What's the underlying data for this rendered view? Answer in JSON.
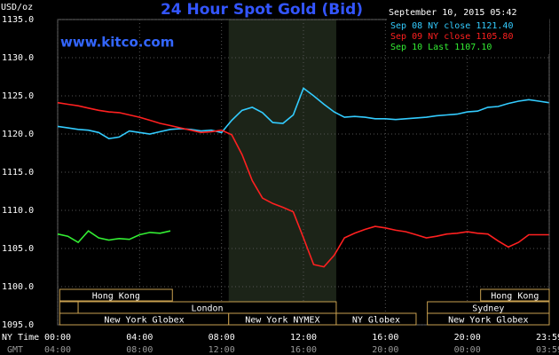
{
  "chart_data": {
    "type": "line",
    "title": "24 Hour Spot Gold (Bid)",
    "y_label": "USD/oz",
    "timestamp": "September 10, 2015 05:42",
    "watermark": "www.kitco.com",
    "x_label": "NY Time",
    "x2_label": "GMT",
    "x": [
      0,
      0.5,
      1,
      1.5,
      2,
      2.5,
      3,
      3.5,
      4,
      4.5,
      5,
      5.5,
      6,
      6.5,
      7,
      7.5,
      8,
      8.5,
      9,
      9.5,
      10,
      10.5,
      11,
      11.5,
      12,
      12.5,
      13,
      13.5,
      14,
      14.5,
      15,
      15.5,
      16,
      16.5,
      17,
      17.5,
      18,
      18.5,
      19,
      19.5,
      20,
      20.5,
      21,
      21.5,
      22,
      22.5,
      23,
      23.5,
      23.98
    ],
    "series": [
      {
        "name": "Sep 08 NY close 1121.40",
        "color": "#33ccff",
        "values": [
          1121.0,
          1120.8,
          1120.6,
          1120.5,
          1120.2,
          1119.4,
          1119.6,
          1120.4,
          1120.2,
          1120.0,
          1120.3,
          1120.6,
          1120.7,
          1120.6,
          1120.4,
          1120.5,
          1120.2,
          1121.8,
          1123.1,
          1123.5,
          1122.8,
          1121.5,
          1121.4,
          1122.5,
          1126.0,
          1125.0,
          1123.9,
          1122.9,
          1122.2,
          1122.3,
          1122.2,
          1122.0,
          1122.0,
          1121.9,
          1122.0,
          1122.1,
          1122.2,
          1122.4,
          1122.5,
          1122.6,
          1122.9,
          1123.0,
          1123.5,
          1123.6,
          1124.0,
          1124.3,
          1124.5,
          1124.3,
          1124.1
        ]
      },
      {
        "name": "Sep 09 NY close 1105.80",
        "color": "#ff2020",
        "values": [
          1124.1,
          1123.9,
          1123.7,
          1123.4,
          1123.1,
          1122.9,
          1122.8,
          1122.5,
          1122.2,
          1121.8,
          1121.4,
          1121.1,
          1120.8,
          1120.5,
          1120.2,
          1120.3,
          1120.5,
          1119.9,
          1117.3,
          1113.9,
          1111.6,
          1110.9,
          1110.4,
          1109.8,
          1106.4,
          1102.9,
          1102.6,
          1104.1,
          1106.4,
          1107.0,
          1107.5,
          1107.9,
          1107.7,
          1107.4,
          1107.2,
          1106.8,
          1106.4,
          1106.6,
          1106.9,
          1107.0,
          1107.2,
          1107.0,
          1106.9,
          1106.0,
          1105.2,
          1105.8,
          1106.8,
          1106.8,
          1106.8
        ]
      },
      {
        "name": "Sep 10 Last 1107.10",
        "color": "#33ee33",
        "values": [
          1106.9,
          1106.6,
          1105.8,
          1107.3,
          1106.4,
          1106.1,
          1106.3,
          1106.2,
          1106.8,
          1107.1,
          1107.0,
          1107.3,
          null,
          null,
          null,
          null,
          null,
          null,
          null,
          null,
          null,
          null,
          null,
          null,
          null,
          null,
          null,
          null,
          null,
          null,
          null,
          null,
          null,
          null,
          null,
          null,
          null,
          null,
          null,
          null,
          null,
          null,
          null,
          null,
          null,
          null,
          null,
          null,
          null
        ]
      }
    ],
    "xlim": [
      0,
      24
    ],
    "xticks": [
      {
        "value": 0,
        "label": "00:00"
      },
      {
        "value": 4,
        "label": "04:00"
      },
      {
        "value": 8,
        "label": "08:00"
      },
      {
        "value": 12,
        "label": "12:00"
      },
      {
        "value": 16,
        "label": "16:00"
      },
      {
        "value": 20,
        "label": "20:00"
      },
      {
        "value": 24,
        "label": "23:59"
      }
    ],
    "x2ticks": [
      {
        "value": 0,
        "label": "04:00"
      },
      {
        "value": 4,
        "label": "08:00"
      },
      {
        "value": 8,
        "label": "12:00"
      },
      {
        "value": 12,
        "label": "16:00"
      },
      {
        "value": 16,
        "label": "20:00"
      },
      {
        "value": 20,
        "label": "00:00"
      },
      {
        "value": 24,
        "label": "03:59"
      }
    ],
    "ylim": [
      1095,
      1135
    ],
    "yticks": [
      {
        "value": 1095,
        "label": "1095.0"
      },
      {
        "value": 1100,
        "label": "1100.0"
      },
      {
        "value": 1105,
        "label": "1105.0"
      },
      {
        "value": 1110,
        "label": "1110.0"
      },
      {
        "value": 1115,
        "label": "1115.0"
      },
      {
        "value": 1120,
        "label": "1120.0"
      },
      {
        "value": 1125,
        "label": "1125.0"
      },
      {
        "value": 1130,
        "label": "1130.0"
      },
      {
        "value": 1135,
        "label": "1135.0"
      }
    ],
    "grid": true,
    "shade_x": [
      8.35,
      13.6
    ],
    "sessions": [
      {
        "label": "Hong Kong",
        "start": 0.1,
        "end": 5.6,
        "row": 0
      },
      {
        "label": "Hong Kong",
        "start": 20.65,
        "end": 24,
        "row": 0
      },
      {
        "start": 0.1,
        "end": 1,
        "row": 1
      },
      {
        "label": "London",
        "start": 1,
        "end": 13.6,
        "row": 1
      },
      {
        "label": "Sydney",
        "start": 18.05,
        "end": 24,
        "row": 1
      },
      {
        "label": "New York Globex",
        "start": 0.1,
        "end": 8.35,
        "row": 2
      },
      {
        "label": "New York NYMEX",
        "start": 8.35,
        "end": 13.6,
        "row": 2
      },
      {
        "label": "NY Globex",
        "start": 13.6,
        "end": 17.5,
        "row": 2
      },
      {
        "label": "New York Globex",
        "start": 18.05,
        "end": 24,
        "row": 2
      }
    ]
  }
}
